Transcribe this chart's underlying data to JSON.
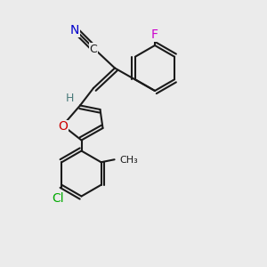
{
  "background_color": "#ebebeb",
  "bond_color": "#1a1a1a",
  "bond_width": 1.5,
  "atom_colors": {
    "N": "#0000cc",
    "O": "#cc0000",
    "F": "#cc00cc",
    "Cl": "#00aa00",
    "C": "#1a1a1a",
    "H": "#4a7a7a"
  },
  "font_size": 9,
  "title": ""
}
